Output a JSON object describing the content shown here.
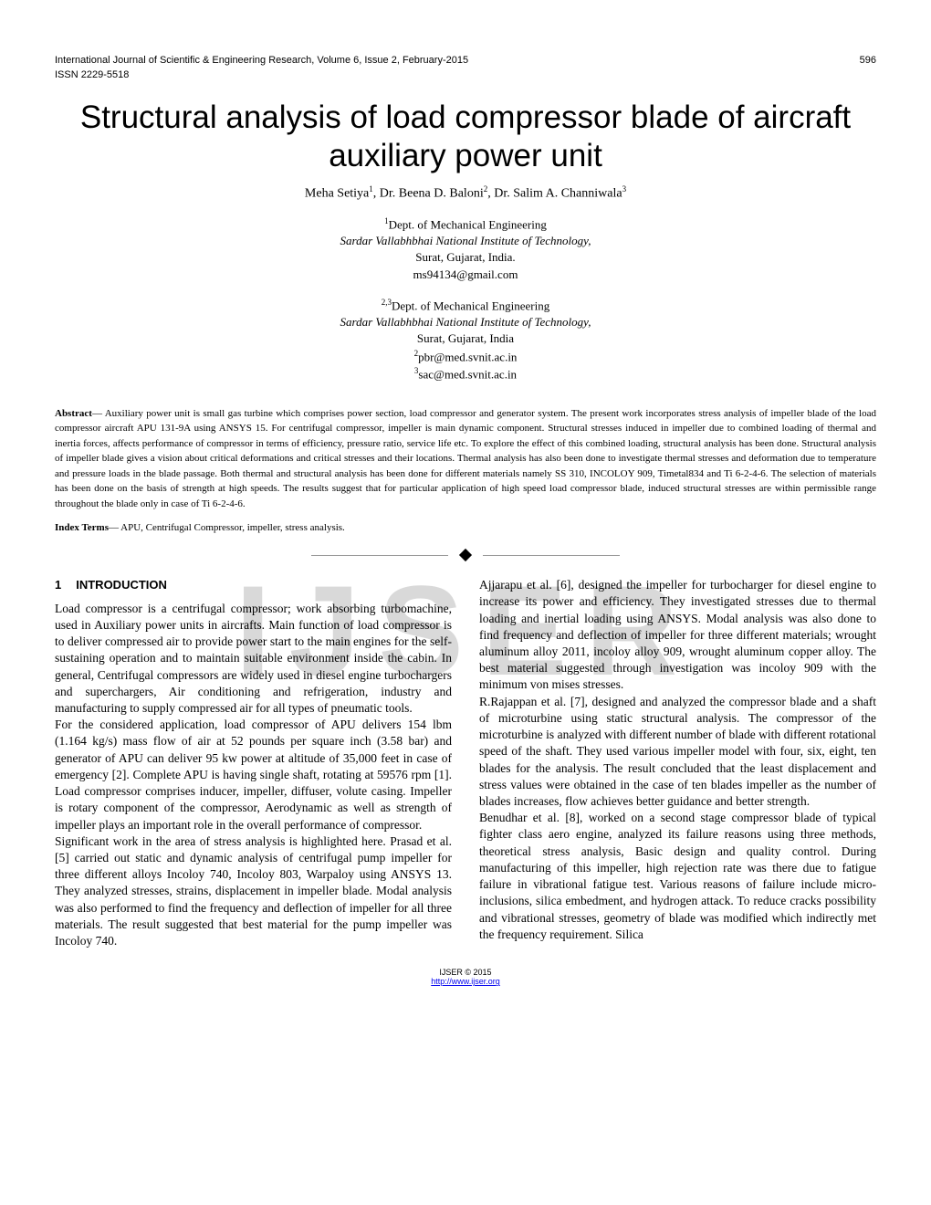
{
  "header": {
    "journal": "International Journal of Scientific & Engineering Research, Volume 6, Issue 2, February-2015",
    "page_number": "596",
    "issn": "ISSN 2229-5518"
  },
  "title": "Structural analysis of load compressor blade of aircraft auxiliary power unit",
  "authors": "Meha Setiya¹, Dr. Beena D. Baloni², Dr. Salim A. Channiwala³",
  "affiliation1": {
    "sup": "1",
    "dept": "Dept. of  Mechanical Engineering",
    "institute": "Sardar Vallabhbhai National Institute of Technology,",
    "location": "Surat, Gujarat, India.",
    "email": "ms94134@gmail.com"
  },
  "affiliation2": {
    "sup": "2,3",
    "dept": "Dept. of  Mechanical Engineering",
    "institute": "Sardar Vallabhbhai National Institute of Technology,",
    "location": "Surat, Gujarat, India",
    "email1_sup": "2",
    "email1": "pbr@med.svnit.ac.in",
    "email2_sup": "3",
    "email2": "sac@med.svnit.ac.in"
  },
  "abstract_label": "Abstract",
  "abstract_text": "— Auxiliary power unit is small gas turbine which comprises power section, load compressor and generator system. The present work incorporates stress analysis of impeller blade of the load compressor aircraft APU 131-9A using ANSYS 15. For centrifugal compressor, impeller is main dynamic component. Structural stresses induced in impeller due to combined loading of thermal and inertia forces, affects performance of compressor in terms of efficiency, pressure ratio, service life etc. To explore the effect of this combined loading, structural analysis has been done. Structural analysis of impeller blade gives a vision about critical deformations and critical stresses and their locations. Thermal analysis has also been done to investigate thermal stresses and deformation due to temperature and pressure loads in the blade passage. Both thermal and structural analysis has been done for different materials namely SS 310, INCOLOY 909, Timetal834 and Ti 6-2-4-6. The selection of materials has been done on the basis of strength at high speeds. The results suggest that for particular application of high speed load compressor blade, induced structural stresses are within permissible range throughout the blade only in case of Ti 6-2-4-6.",
  "index_label": "Index Terms",
  "index_text": "— APU, Centrifugal Compressor, impeller, stress analysis.",
  "watermark": "IJSER",
  "section1": {
    "num": "1",
    "title": "INTRODUCTION"
  },
  "col_left": "Load compressor is a centrifugal compressor; work absorbing turbomachine, used in Auxiliary power units in aircrafts. Main function of load compressor is to deliver compressed air to provide power start to the main engines for the self-sustaining operation and to maintain suitable environment inside the cabin. In general, Centrifugal compressors are widely used in diesel engine turbochargers and superchargers, Air conditioning and refrigeration, industry and manufacturing to supply compressed air for all types of pneumatic tools.\nFor the considered application, load compressor of APU delivers 154 lbm (1.164 kg/s) mass flow of air at 52 pounds per square inch (3.58 bar) and generator of APU can deliver 95 kw power at altitude of 35,000 feet in case of emergency [2]. Complete APU is having single shaft, rotating at 59576 rpm [1]. Load compressor comprises inducer, impeller, diffuser, volute casing. Impeller is rotary component of the compressor, Aerodynamic as well as strength of impeller plays an important role in the overall performance of compressor.\nSignificant work in the area of stress analysis is highlighted here. Prasad et al. [5] carried out static and dynamic analysis of centrifugal pump impeller for three different alloys Incoloy 740, Incoloy 803, Warpaloy using ANSYS 13. They analyzed stresses, strains, displacement in impeller blade. Modal analysis was also performed to find the frequency and deflection of impeller for all three materials. The result suggested that best material for the pump impeller was Incoloy 740.",
  "col_right": "Ajjarapu et al. [6], designed the impeller for turbocharger for diesel engine to increase its power and efficiency. They investigated stresses due to thermal loading and inertial loading using ANSYS. Modal analysis was also done to find frequency and deflection of impeller for three different materials; wrought aluminum alloy 2011, incoloy alloy 909, wrought aluminum copper alloy. The best material suggested through investigation was incoloy 909 with the minimum von mises stresses.\nR.Rajappan et al. [7], designed and analyzed the compressor blade and a shaft of microturbine using static structural analysis. The compressor of the microturbine is analyzed with different number of blade with different rotational speed of the shaft. They used various impeller model with four, six, eight, ten blades for the analysis. The result concluded that the least displacement and stress values were obtained in the case of ten blades impeller as the number of blades increases, flow achieves better guidance and better strength.\nBenudhar et al. [8], worked on a second stage compressor blade of typical fighter class aero engine, analyzed its failure reasons using three methods, theoretical stress analysis, Basic design and quality control. During manufacturing of this impeller, high rejection rate was there due to fatigue failure in vibrational fatigue test. Various reasons of failure include micro-inclusions, silica embedment, and hydrogen attack. To reduce cracks possibility and vibrational stresses, geometry of blade was modified which indirectly met the frequency requirement. Silica",
  "footer": {
    "copyright": "IJSER © 2015",
    "link": "http://www.ijser.org"
  }
}
